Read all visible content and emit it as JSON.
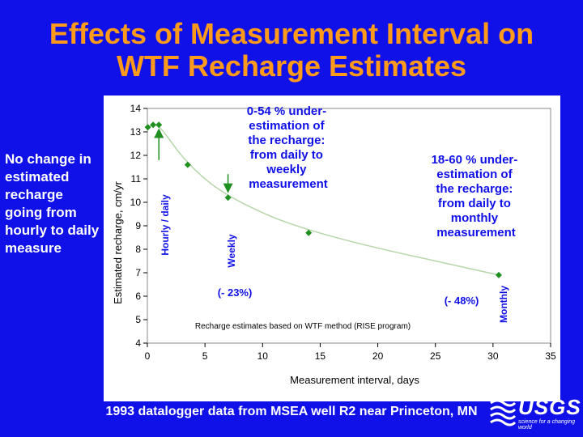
{
  "slide": {
    "title_line1": "Effects of Measurement Interval on",
    "title_line2": "WTF Recharge Estimates",
    "left_note": "No change in estimated recharge going from hourly to daily measure",
    "footer": "1993 datalogger data from MSEA well R2 near Princeton, MN",
    "logo_word": "USGS",
    "logo_tagline": "science for a changing world"
  },
  "chart_data": {
    "type": "scatter",
    "xlabel": "Measurement interval, days",
    "ylabel": "Estimated recharge, cm/yr",
    "xlim": [
      0,
      35
    ],
    "ylim": [
      4,
      14
    ],
    "xticks": [
      0,
      5,
      10,
      15,
      20,
      25,
      30,
      35
    ],
    "yticks": [
      4,
      5,
      6,
      7,
      8,
      9,
      10,
      11,
      12,
      13,
      14
    ],
    "grid": false,
    "series": [
      {
        "color": "#1f8f1f",
        "x": [
          0.04,
          0.5,
          1,
          3.5,
          7,
          14,
          30.5
        ],
        "y": [
          13.2,
          13.3,
          13.3,
          11.6,
          10.2,
          8.7,
          6.9
        ]
      }
    ],
    "labels": {
      "hourly_daily": "Hourly / daily",
      "weekly": "Weekly",
      "monthly": "Monthly",
      "weekly_note": "0-54 % under-estimation of the recharge: from daily to weekly measurement",
      "monthly_note": "18-60 % under-estimation of the recharge: from daily to monthly measurement",
      "pct_weekly": "(- 23%)",
      "pct_monthly": "(- 48%)",
      "method_note": "Recharge estimates based on WTF method (RISE program)"
    }
  }
}
